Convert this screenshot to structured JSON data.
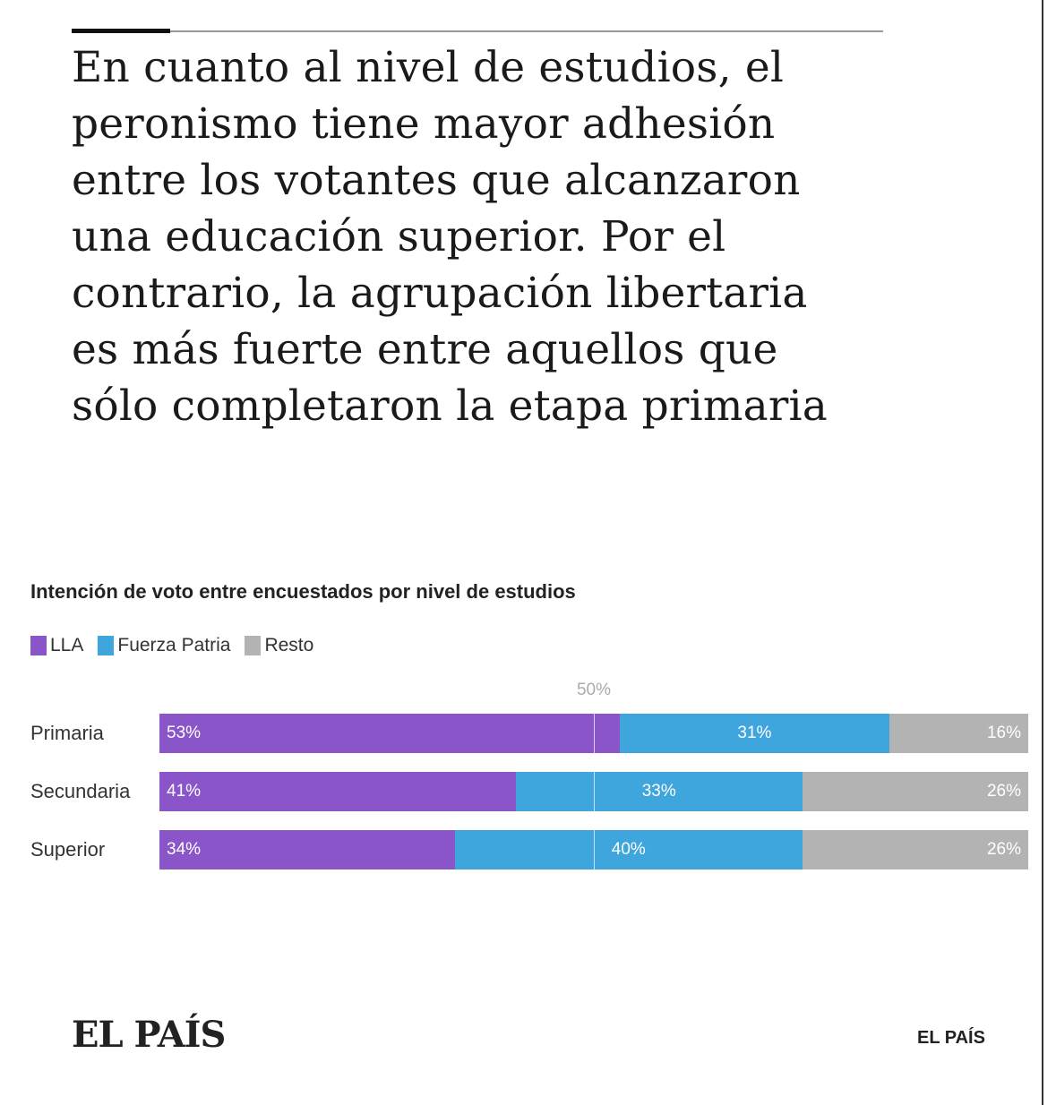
{
  "headline": "En cuanto al nivel de estudios, el peronismo tiene mayor adhesión entre los votantes que alcanzaron una educación superior. Por el contrario, la agrupación libertaria es más fuerte entre aquellos que sólo completaron la etapa primaria",
  "headline_lines": [
    "En cuanto al nivel de estudios, el",
    "peronismo tiene mayor adhesión",
    "entre los votantes que alcanzaron",
    "una educación superior. Por el",
    "contrario, la agrupación libertaria",
    "es más fuerte entre aquellos que",
    "sólo completaron la etapa primaria"
  ],
  "chart_data": {
    "type": "bar",
    "stacked": true,
    "orientation": "horizontal",
    "title": "Intención de voto entre encuestados por nivel de estudios",
    "categories": [
      "Primaria",
      "Secundaria",
      "Superior"
    ],
    "series": [
      {
        "name": "LLA",
        "color": "#8a55c9",
        "values": [
          53,
          41,
          34
        ],
        "labels": [
          "53%",
          "41%",
          "34%"
        ]
      },
      {
        "name": "Fuerza Patria",
        "color": "#3fa6dd",
        "values": [
          31,
          33,
          40
        ],
        "labels": [
          "31%",
          "33%",
          "40%"
        ]
      },
      {
        "name": "Resto",
        "color": "#b3b3b3",
        "values": [
          16,
          26,
          26
        ],
        "labels": [
          "16%",
          "26%",
          "26%"
        ]
      }
    ],
    "reference_line": {
      "value": 50,
      "label": "50%"
    },
    "xlim": [
      0,
      100
    ],
    "legend": "top-left"
  },
  "footer": {
    "logo": "EL PAÍS",
    "credit": "EL PAÍS"
  }
}
